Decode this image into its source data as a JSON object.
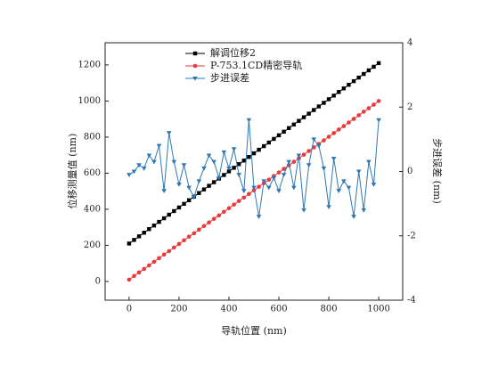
{
  "chart_data": {
    "type": "line",
    "x_label": "导轨位置 (nm)",
    "y_label": "位移测量值 (nm)",
    "y2_label": "步进误差 (nm)",
    "x": [
      0,
      20,
      40,
      60,
      80,
      100,
      120,
      140,
      160,
      180,
      200,
      220,
      240,
      260,
      280,
      300,
      320,
      340,
      360,
      380,
      400,
      420,
      440,
      460,
      480,
      500,
      520,
      540,
      560,
      580,
      600,
      620,
      640,
      660,
      680,
      700,
      720,
      740,
      760,
      780,
      800,
      820,
      840,
      860,
      880,
      900,
      920,
      940,
      960,
      980,
      1000
    ],
    "series": [
      {
        "name": "解调位移2",
        "color": "#000000",
        "marker": "square",
        "axis": "y",
        "values": [
          210,
          230,
          250,
          270,
          290,
          310,
          330,
          350,
          370,
          390,
          410,
          430,
          450,
          470,
          490,
          510,
          530,
          550,
          570,
          590,
          610,
          630,
          650,
          670,
          690,
          710,
          730,
          750,
          770,
          790,
          810,
          830,
          850,
          870,
          890,
          910,
          930,
          950,
          970,
          990,
          1010,
          1030,
          1050,
          1070,
          1090,
          1110,
          1130,
          1150,
          1170,
          1190,
          1210
        ]
      },
      {
        "name": "P-753.1CD精密导轨",
        "color": "#e8393c",
        "marker": "circle",
        "axis": "y",
        "values": [
          10,
          30,
          50,
          69,
          89,
          109,
          129,
          149,
          168,
          188,
          208,
          228,
          248,
          267,
          287,
          307,
          327,
          347,
          366,
          386,
          406,
          426,
          446,
          465,
          485,
          505,
          525,
          545,
          564,
          584,
          604,
          624,
          644,
          663,
          683,
          703,
          723,
          743,
          762,
          782,
          802,
          822,
          842,
          861,
          881,
          901,
          921,
          941,
          960,
          980,
          1000
        ]
      },
      {
        "name": "步进误差",
        "color": "#2f78b4",
        "marker": "triangle-down",
        "axis": "y2",
        "values": [
          -0.1,
          0.0,
          0.2,
          0.1,
          0.5,
          0.3,
          0.8,
          -0.6,
          1.2,
          0.3,
          -0.4,
          0.2,
          -0.5,
          -0.8,
          -0.3,
          0.1,
          0.5,
          0.3,
          -0.2,
          0.6,
          0.1,
          0.7,
          -0.1,
          -0.6,
          1.6,
          -0.5,
          -1.4,
          -0.3,
          -0.5,
          -0.2,
          -0.6,
          -0.1,
          0.3,
          -0.5,
          0.5,
          -1.2,
          0.2,
          1.0,
          0.8,
          0.1,
          -1.1,
          0.4,
          -0.6,
          -0.3,
          -0.5,
          -1.4,
          0.0,
          -1.2,
          0.3,
          -0.4,
          1.6
        ]
      }
    ],
    "xlim": [
      -96,
      1096
    ],
    "xticks": [
      0,
      200,
      400,
      600,
      800,
      1000
    ],
    "ylim": [
      -104,
      1323
    ],
    "yticks": [
      0,
      200,
      400,
      600,
      800,
      1000,
      1200
    ],
    "y2lim": [
      -4,
      4
    ],
    "y2ticks": [
      -4,
      -2,
      0,
      2,
      4
    ],
    "legend": "upper center"
  }
}
